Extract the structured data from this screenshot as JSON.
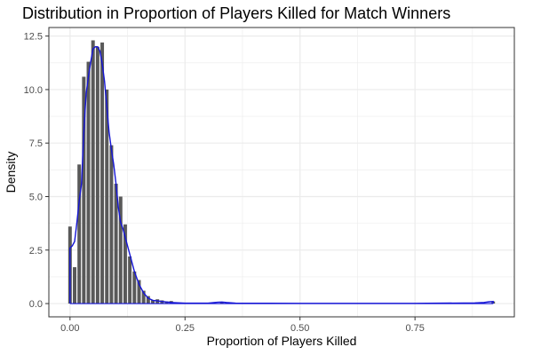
{
  "chart_data": {
    "type": "bar",
    "title": "Distribution in Proportion of Players Killed for Match Winners",
    "xlabel": "Proportion of Players Killed",
    "ylabel": "Density",
    "xlim": [
      -0.046,
      0.966
    ],
    "ylim": [
      -0.62,
      12.9
    ],
    "x_ticks": [
      0.0,
      0.25,
      0.5,
      0.75
    ],
    "x_tick_labels": [
      "0.00",
      "0.25",
      "0.50",
      "0.75"
    ],
    "y_ticks": [
      0.0,
      2.5,
      5.0,
      7.5,
      10.0,
      12.5
    ],
    "y_tick_labels": [
      "0.0",
      "2.5",
      "5.0",
      "7.5",
      "10.0",
      "12.5"
    ],
    "grid": true,
    "legend": "none",
    "colors": {
      "bars": "#595959",
      "density_line": "#1515d6",
      "grid": "#ebebeb",
      "panel_border": "#333333"
    },
    "histogram": {
      "bin_width": 0.01,
      "bin_centers": [
        0.0,
        0.01,
        0.02,
        0.03,
        0.04,
        0.05,
        0.06,
        0.07,
        0.08,
        0.09,
        0.1,
        0.11,
        0.12,
        0.13,
        0.14,
        0.15,
        0.16,
        0.17,
        0.18,
        0.19,
        0.2,
        0.21,
        0.22,
        0.23,
        0.24,
        0.33,
        0.92
      ],
      "values": [
        3.6,
        1.7,
        6.5,
        10.6,
        11.3,
        12.3,
        12.0,
        12.2,
        10.0,
        7.4,
        5.6,
        5.0,
        3.7,
        2.2,
        1.5,
        1.1,
        0.6,
        0.35,
        0.15,
        0.2,
        0.15,
        0.1,
        0.12,
        0.05,
        0.03,
        0.07,
        0.1
      ]
    },
    "density": {
      "x": [
        0.0,
        0.005,
        0.01,
        0.015,
        0.02,
        0.025,
        0.03,
        0.035,
        0.04,
        0.045,
        0.05,
        0.055,
        0.06,
        0.065,
        0.07,
        0.075,
        0.08,
        0.085,
        0.09,
        0.095,
        0.1,
        0.105,
        0.11,
        0.115,
        0.12,
        0.13,
        0.14,
        0.15,
        0.16,
        0.17,
        0.18,
        0.2,
        0.22,
        0.25,
        0.3,
        0.32,
        0.33,
        0.34,
        0.36,
        0.5,
        0.75,
        0.88,
        0.9,
        0.91,
        0.92
      ],
      "y": [
        2.6,
        2.7,
        2.9,
        3.8,
        4.8,
        5.6,
        8.0,
        9.8,
        10.6,
        11.3,
        11.9,
        12.0,
        12.0,
        11.8,
        11.2,
        10.4,
        9.2,
        8.0,
        7.2,
        6.5,
        5.6,
        4.5,
        3.8,
        3.5,
        3.1,
        2.3,
        1.5,
        0.9,
        0.5,
        0.25,
        0.15,
        0.1,
        0.05,
        0.02,
        0.02,
        0.06,
        0.07,
        0.05,
        0.02,
        0.01,
        0.01,
        0.03,
        0.05,
        0.08,
        0.1
      ]
    }
  }
}
